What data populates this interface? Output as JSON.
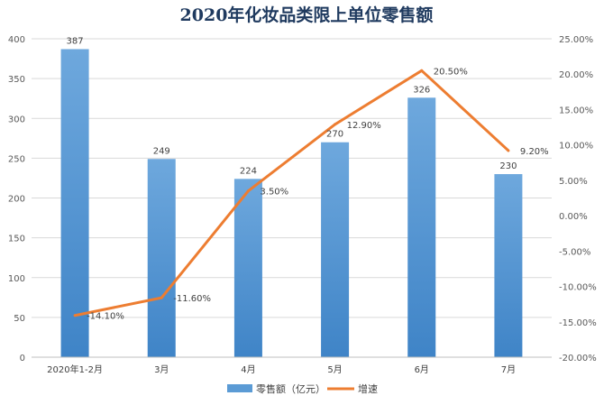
{
  "chart_data": {
    "type": "bar",
    "title": "2020年化妆品类限上单位零售额",
    "categories": [
      "2020年1-2月",
      "3月",
      "4月",
      "5月",
      "6月",
      "7月"
    ],
    "series": [
      {
        "name": "零售额（亿元）",
        "type": "bar",
        "axis": "left",
        "color": "#5b9bd5",
        "values": [
          387,
          249,
          224,
          270,
          326,
          230
        ],
        "labels": [
          "387",
          "249",
          "224",
          "270",
          "326",
          "230"
        ]
      },
      {
        "name": "增速",
        "type": "line",
        "axis": "right",
        "color": "#ed7d31",
        "values": [
          -14.1,
          -11.6,
          3.5,
          12.9,
          20.5,
          9.2
        ],
        "labels": [
          "-14.10%",
          "-11.60%",
          "3.50%",
          "12.90%",
          "20.50%",
          "9.20%"
        ]
      }
    ],
    "y_left": {
      "min": 0,
      "max": 400,
      "ticks": [
        "0",
        "50",
        "100",
        "150",
        "200",
        "250",
        "300",
        "350",
        "400"
      ]
    },
    "y_right": {
      "min": -20,
      "max": 25,
      "ticks": [
        "-20.00%",
        "-15.00%",
        "-10.00%",
        "-5.00%",
        "0.00%",
        "5.00%",
        "10.00%",
        "15.00%",
        "20.00%",
        "25.00%"
      ]
    },
    "grid": true,
    "legend": "bottom"
  }
}
